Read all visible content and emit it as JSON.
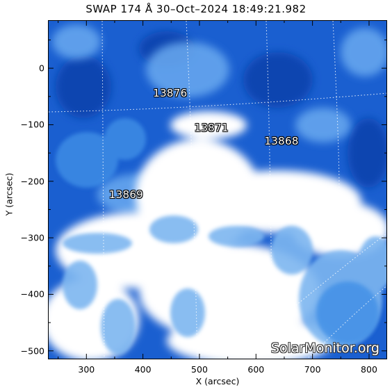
{
  "title": "SWAP 174 Å 30–Oct–2024 18:49:21.982",
  "axes": {
    "xlabel": "X (arcsec)",
    "ylabel": "Y (arcsec)",
    "x_ticks": [
      "300",
      "400",
      "500",
      "600",
      "700",
      "800"
    ],
    "y_ticks": [
      "0",
      "−100",
      "−200",
      "−300",
      "−400",
      "−500"
    ],
    "x_tick_values": [
      300,
      400,
      500,
      600,
      700,
      800
    ],
    "y_tick_values": [
      0,
      -100,
      -200,
      -300,
      -400,
      -500
    ],
    "xlim": [
      232,
      832
    ],
    "ylim": [
      -515,
      85
    ]
  },
  "regions": [
    {
      "label": "13876",
      "x": 445,
      "y": -45
    },
    {
      "label": "13871",
      "x": 518,
      "y": -107
    },
    {
      "label": "13868",
      "x": 642,
      "y": -130
    },
    {
      "label": "13869",
      "x": 367,
      "y": -225
    }
  ],
  "watermark": "SolarMonitor.org",
  "colors": {
    "deep_blue": "#0d4fc4",
    "mid_blue": "#2f7fe0",
    "light_blue": "#8fc0f2",
    "bright": "#ffffff"
  }
}
